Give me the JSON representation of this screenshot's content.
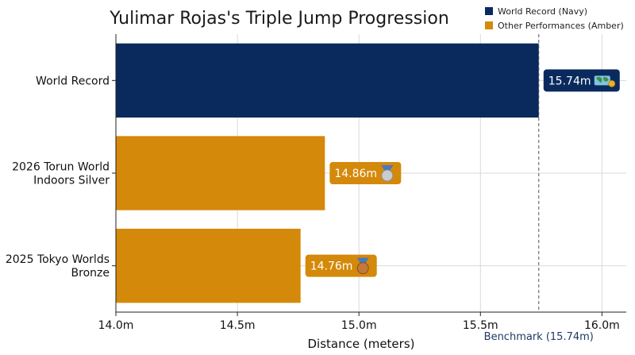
{
  "chart_data": {
    "type": "bar",
    "orientation": "horizontal",
    "title": "Yulimar Rojas's Triple Jump Progression",
    "xlabel": "Distance (meters)",
    "ylabel": "",
    "xlim": [
      14.0,
      16.1
    ],
    "xticks": [
      14.0,
      14.5,
      15.0,
      15.5,
      16.0
    ],
    "xtick_labels": [
      "14.0m",
      "14.5m",
      "15.0m",
      "15.5m",
      "16.0m"
    ],
    "categories": [
      "World Record",
      "2026 Torun World Indoors Silver",
      "2025 Tokyo Worlds Bronze"
    ],
    "category_label_lines": [
      [
        "World Record"
      ],
      [
        "2026 Torun World",
        "Indoors Silver"
      ],
      [
        "2025 Tokyo Worlds",
        "Bronze"
      ]
    ],
    "values": [
      15.74,
      14.86,
      14.76
    ],
    "value_labels": [
      "15.74m",
      "14.86m",
      "14.76m"
    ],
    "value_icons": [
      "globe-medal-icon",
      "silver-medal-icon",
      "bronze-medal-icon"
    ],
    "bar_series": [
      "World Record (Navy)",
      "Other Performances (Amber)",
      "Other Performances (Amber)"
    ],
    "legend": {
      "placement": "top-right",
      "entries": [
        {
          "label": "World Record (Navy)",
          "color": "#0a2a5e"
        },
        {
          "label": "Other Performances (Amber)",
          "color": "#d4890a"
        }
      ]
    },
    "benchmark": {
      "value": 15.74,
      "label": "Benchmark (15.74m)",
      "color": "#1f3a66"
    },
    "grid": true,
    "colors": {
      "navy": "#0a2a5e",
      "amber": "#d4890a"
    }
  }
}
